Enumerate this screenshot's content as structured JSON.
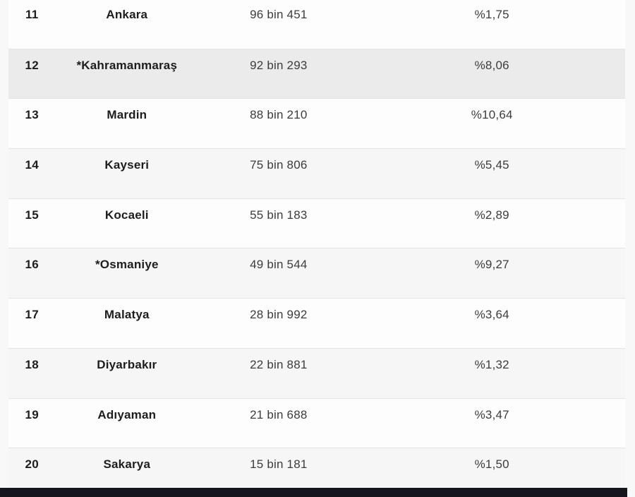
{
  "page": {
    "background_color": "#f8f8f8",
    "footer_bar_color": "#15151d"
  },
  "table": {
    "zebra_color": "#f6f6f6",
    "highlight_color": "#ebebeb",
    "rows": [
      {
        "rank": "11",
        "city": "Ankara",
        "count": "96 bin 451",
        "percent": "%1,75",
        "highlight": false
      },
      {
        "rank": "12",
        "city": "*Kahramanmaraş",
        "count": "92 bin 293",
        "percent": "%8,06",
        "highlight": true
      },
      {
        "rank": "13",
        "city": "Mardin",
        "count": "88 bin 210",
        "percent": "%10,64",
        "highlight": false
      },
      {
        "rank": "14",
        "city": "Kayseri",
        "count": "75 bin 806",
        "percent": "%5,45",
        "highlight": false
      },
      {
        "rank": "15",
        "city": "Kocaeli",
        "count": "55 bin 183",
        "percent": "%2,89",
        "highlight": false
      },
      {
        "rank": "16",
        "city": "*Osmaniye",
        "count": "49 bin 544",
        "percent": "%9,27",
        "highlight": false
      },
      {
        "rank": "17",
        "city": "Malatya",
        "count": "28 bin 992",
        "percent": "%3,64",
        "highlight": false
      },
      {
        "rank": "18",
        "city": "Diyarbakır",
        "count": "22 bin 881",
        "percent": "%1,32",
        "highlight": false
      },
      {
        "rank": "19",
        "city": "Adıyaman",
        "count": "21 bin 688",
        "percent": "%3,47",
        "highlight": false
      },
      {
        "rank": "20",
        "city": "Sakarya",
        "count": "15 bin 181",
        "percent": "%1,50",
        "highlight": false
      }
    ]
  }
}
